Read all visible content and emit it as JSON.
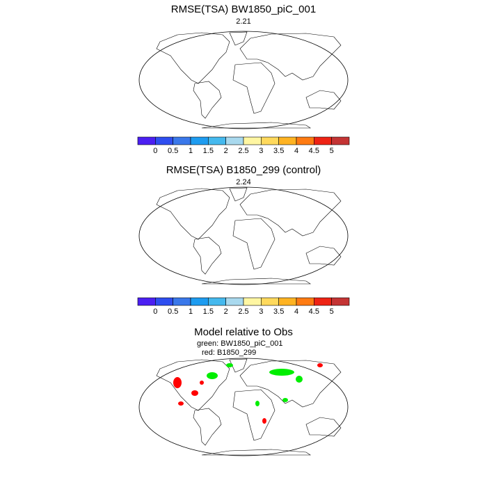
{
  "panels": [
    {
      "title": "RMSE(TSA) BW1850_piC_001",
      "subtitle": "2.21"
    },
    {
      "title": "RMSE(TSA) B1850_299 (control)",
      "subtitle": "2.24"
    },
    {
      "title": "Model relative to Obs",
      "lines": [
        "green: BW1850_piC_001",
        "red: B1850_299"
      ]
    }
  ],
  "colorbar": {
    "colors": [
      "#4b1ff2",
      "#2e4ef0",
      "#3a78ea",
      "#1e9cf0",
      "#45b9ee",
      "#a9d9ee",
      "#fff6a2",
      "#ffd95c",
      "#ffb322",
      "#ff7b12",
      "#ee2314",
      "#c43434"
    ],
    "ticks": [
      0,
      0.5,
      1,
      1.5,
      2,
      2.5,
      3,
      3.5,
      4,
      4.5,
      5
    ]
  }
}
